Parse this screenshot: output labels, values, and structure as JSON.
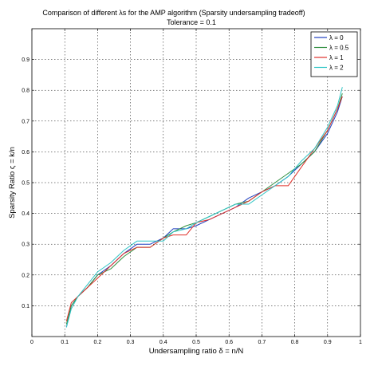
{
  "chart_data": {
    "type": "line",
    "title": "Comparison of different  λs for the AMP algorithm (Sparsity undersampling tradeoff)",
    "subtitle": "Tolerance = 0.1",
    "xlabel": "Undersampling ratio  δ = n/N",
    "ylabel": "Sparsity Ratio  ς = k/n",
    "xlim": [
      0,
      1
    ],
    "ylim": [
      0,
      1
    ],
    "xticks": [
      "0",
      "0.1",
      "0.2",
      "0.3",
      "0.4",
      "0.5",
      "0.6",
      "0.7",
      "0.8",
      "0.9",
      "1"
    ],
    "yticks": [
      "0.1",
      "0.2",
      "0.3",
      "0.4",
      "0.5",
      "0.6",
      "0.7",
      "0.8",
      "0.9"
    ],
    "grid": true,
    "legend_position": "top-right",
    "series": [
      {
        "name": "λ = 0",
        "color": "#1f3fbf",
        "x": [
          0.105,
          0.12,
          0.14,
          0.17,
          0.2,
          0.24,
          0.28,
          0.32,
          0.36,
          0.4,
          0.43,
          0.47,
          0.5,
          0.54,
          0.58,
          0.62,
          0.66,
          0.7,
          0.74,
          0.78,
          0.82,
          0.86,
          0.9,
          0.93,
          0.945
        ],
        "y": [
          0.03,
          0.1,
          0.13,
          0.16,
          0.2,
          0.23,
          0.27,
          0.3,
          0.3,
          0.32,
          0.35,
          0.35,
          0.36,
          0.38,
          0.4,
          0.42,
          0.45,
          0.47,
          0.49,
          0.52,
          0.56,
          0.6,
          0.66,
          0.73,
          0.78
        ]
      },
      {
        "name": "λ = 0.5",
        "color": "#2f8f3f",
        "x": [
          0.105,
          0.12,
          0.14,
          0.17,
          0.2,
          0.24,
          0.28,
          0.32,
          0.36,
          0.4,
          0.43,
          0.47,
          0.5,
          0.54,
          0.58,
          0.62,
          0.66,
          0.7,
          0.74,
          0.78,
          0.82,
          0.86,
          0.9,
          0.93,
          0.945
        ],
        "y": [
          0.04,
          0.1,
          0.13,
          0.16,
          0.2,
          0.22,
          0.26,
          0.29,
          0.29,
          0.32,
          0.34,
          0.36,
          0.37,
          0.39,
          0.41,
          0.43,
          0.44,
          0.47,
          0.5,
          0.53,
          0.56,
          0.6,
          0.67,
          0.74,
          0.79
        ]
      },
      {
        "name": "λ = 1",
        "color": "#e0302a",
        "x": [
          0.105,
          0.12,
          0.14,
          0.17,
          0.2,
          0.24,
          0.28,
          0.32,
          0.36,
          0.4,
          0.43,
          0.47,
          0.5,
          0.54,
          0.58,
          0.62,
          0.66,
          0.7,
          0.74,
          0.78,
          0.82,
          0.86,
          0.9,
          0.93,
          0.945
        ],
        "y": [
          0.05,
          0.11,
          0.13,
          0.16,
          0.19,
          0.23,
          0.27,
          0.29,
          0.29,
          0.32,
          0.33,
          0.33,
          0.37,
          0.38,
          0.4,
          0.42,
          0.44,
          0.47,
          0.49,
          0.49,
          0.55,
          0.61,
          0.67,
          0.74,
          0.78
        ]
      },
      {
        "name": "λ = 2",
        "color": "#2ec4c4",
        "x": [
          0.105,
          0.12,
          0.14,
          0.17,
          0.2,
          0.24,
          0.28,
          0.32,
          0.36,
          0.4,
          0.43,
          0.47,
          0.5,
          0.54,
          0.58,
          0.62,
          0.66,
          0.7,
          0.74,
          0.78,
          0.82,
          0.86,
          0.9,
          0.93,
          0.945
        ],
        "y": [
          0.03,
          0.09,
          0.13,
          0.17,
          0.21,
          0.24,
          0.28,
          0.31,
          0.31,
          0.31,
          0.34,
          0.35,
          0.37,
          0.39,
          0.41,
          0.43,
          0.43,
          0.46,
          0.49,
          0.52,
          0.57,
          0.61,
          0.68,
          0.75,
          0.81
        ]
      }
    ]
  }
}
